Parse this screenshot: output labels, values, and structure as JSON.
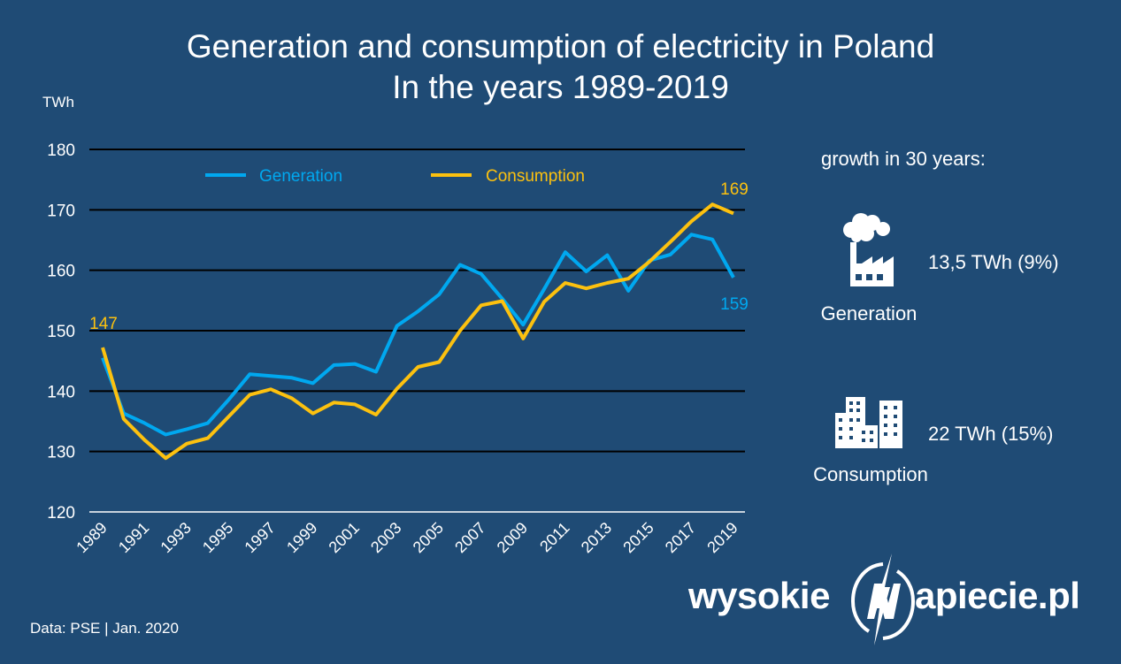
{
  "title_line1": "Generation and consumption of electricity in Poland",
  "title_line2": "In the years 1989-2019",
  "colors": {
    "background": "#1f4b75",
    "generation": "#00a8f0",
    "consumption": "#fcc10f",
    "grid": "#000000",
    "text": "#ffffff"
  },
  "chart_data": {
    "type": "line",
    "ylabel": "TWh",
    "ylim": [
      120,
      180
    ],
    "yticks": [
      120,
      130,
      140,
      150,
      160,
      170,
      180
    ],
    "xlim": [
      1989,
      2019
    ],
    "xticks": [
      1989,
      1991,
      1993,
      1995,
      1997,
      1999,
      2001,
      2003,
      2005,
      2007,
      2009,
      2011,
      2013,
      2015,
      2017,
      2019
    ],
    "legend_position": "top",
    "grid": "horizontal",
    "x": [
      1989,
      1990,
      1991,
      1992,
      1993,
      1994,
      1995,
      1996,
      1997,
      1998,
      1999,
      2000,
      2001,
      2002,
      2003,
      2004,
      2005,
      2006,
      2007,
      2008,
      2009,
      2010,
      2011,
      2012,
      2013,
      2014,
      2015,
      2016,
      2017,
      2018,
      2019
    ],
    "series": [
      {
        "name": "Generation",
        "color": "#00a8f0",
        "values": [
          145.5,
          136.3,
          134.7,
          132.8,
          133.7,
          134.7,
          138.6,
          142.8,
          142.5,
          142.2,
          141.3,
          144.3,
          144.5,
          143.2,
          150.8,
          153.2,
          156.0,
          160.9,
          159.4,
          155.3,
          151.0,
          156.9,
          163.0,
          159.8,
          162.5,
          156.6,
          161.6,
          162.6,
          165.9,
          165.1,
          158.8
        ],
        "end_label": "159"
      },
      {
        "name": "Consumption",
        "color": "#fcc10f",
        "values": [
          147.2,
          135.4,
          131.9,
          128.9,
          131.3,
          132.2,
          135.8,
          139.4,
          140.3,
          138.8,
          136.3,
          138.1,
          137.8,
          136.1,
          140.4,
          144.0,
          144.8,
          150.0,
          154.2,
          154.9,
          148.7,
          154.8,
          157.9,
          157.0,
          157.9,
          158.6,
          161.4,
          164.7,
          168.1,
          170.9,
          169.4
        ],
        "start_label": "147",
        "end_label": "169"
      }
    ]
  },
  "side": {
    "heading": "growth in 30 years:",
    "generation_value": "13,5 TWh (9%)",
    "generation_label": "Generation",
    "consumption_value": "22 TWh (15%)",
    "consumption_label": "Consumption",
    "generation_icon": "factory-icon",
    "consumption_icon": "city-buildings-icon"
  },
  "source": "Data: PSE |  Jan. 2020",
  "logo": {
    "left": "wysokie",
    "right": "apiecie.pl",
    "icon": "lightning-n-icon"
  }
}
